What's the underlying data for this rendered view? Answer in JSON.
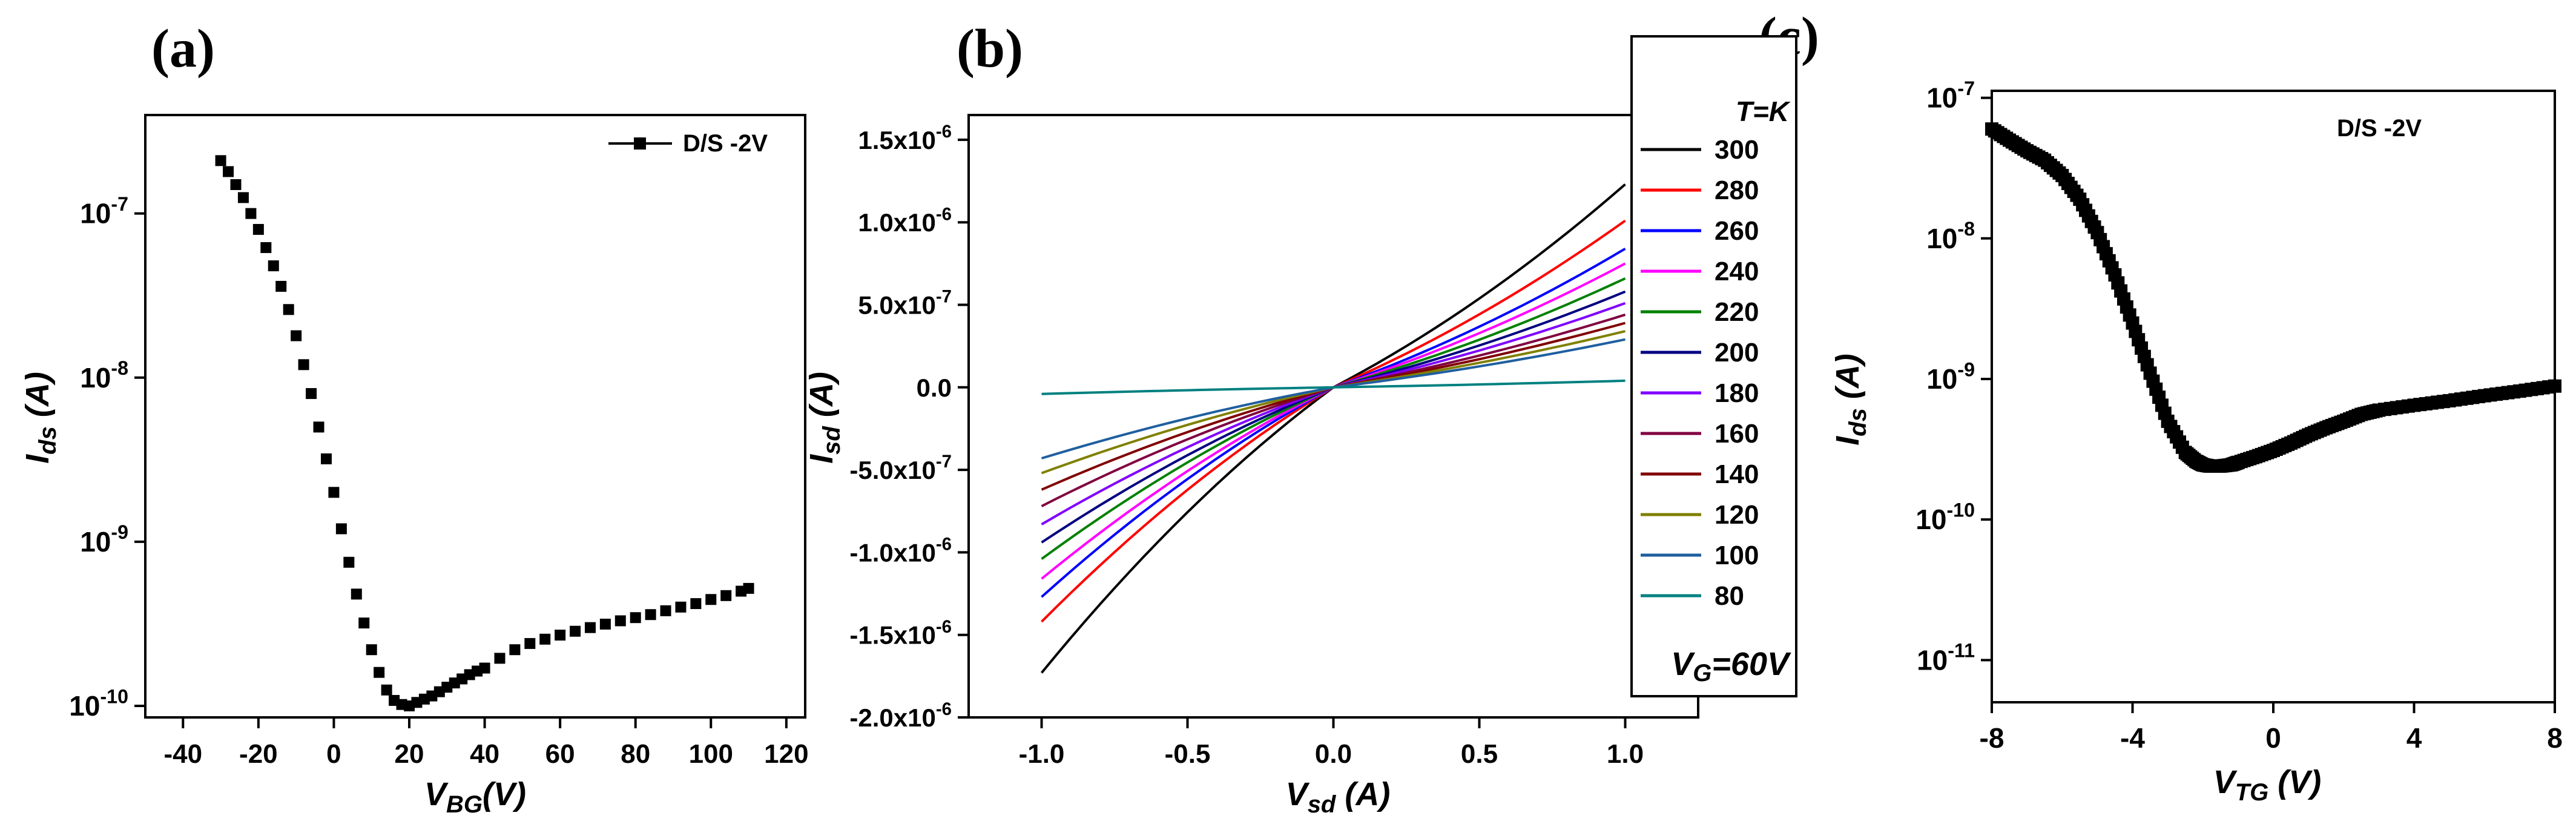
{
  "figure": {
    "panels": [
      {
        "id": "a",
        "letter": "(a)"
      },
      {
        "id": "b",
        "letter": "(b)"
      },
      {
        "id": "c",
        "letter": "(c)"
      }
    ]
  },
  "chart_data": [
    {
      "id": "a",
      "type": "scatter",
      "scale_y": "log",
      "ylabel": {
        "main": "I",
        "sub": "ds",
        "unit": " (A)"
      },
      "xlabel": {
        "main": "V",
        "sub": "BG",
        "unit": "(V)"
      },
      "xlim": [
        -50,
        125
      ],
      "ylim_exp": [
        -10.07,
        -6.4
      ],
      "xticks": [
        -40,
        -20,
        0,
        20,
        40,
        60,
        80,
        100,
        120
      ],
      "xtick_labels": [
        "-40",
        "-20",
        "0",
        "20",
        "40",
        "60",
        "80",
        "100",
        "120"
      ],
      "yticks_exp": [
        -10,
        -9,
        -8,
        -7
      ],
      "ytick_labels": [
        {
          "base": "10",
          "exp": "-10"
        },
        {
          "base": "10",
          "exp": "-9"
        },
        {
          "base": "10",
          "exp": "-8"
        },
        {
          "base": "10",
          "exp": "-7"
        }
      ],
      "legend": {
        "label": "D/S -2V",
        "position": "top-right"
      },
      "series": [
        {
          "name": "D/S -2V",
          "x": [
            -30,
            -28,
            -26,
            -24,
            -22,
            -20,
            -18,
            -16,
            -14,
            -12,
            -10,
            -8,
            -6,
            -4,
            -2,
            0,
            2,
            4,
            6,
            8,
            10,
            12,
            14,
            16,
            18,
            20,
            22,
            24,
            26,
            28,
            30,
            32,
            34,
            36,
            38,
            40,
            44,
            48,
            52,
            56,
            60,
            64,
            68,
            72,
            76,
            80,
            84,
            88,
            92,
            96,
            100,
            104,
            108,
            110
          ],
          "y": [
            2.1e-07,
            1.8e-07,
            1.5e-07,
            1.25e-07,
            1e-07,
            8e-08,
            6.2e-08,
            4.8e-08,
            3.6e-08,
            2.6e-08,
            1.8e-08,
            1.2e-08,
            8e-09,
            5e-09,
            3.2e-09,
            2e-09,
            1.2e-09,
            7.5e-10,
            4.8e-10,
            3.2e-10,
            2.2e-10,
            1.6e-10,
            1.25e-10,
            1.08e-10,
            1.02e-10,
            1e-10,
            1.05e-10,
            1.1e-10,
            1.15e-10,
            1.22e-10,
            1.3e-10,
            1.38e-10,
            1.46e-10,
            1.55e-10,
            1.63e-10,
            1.7e-10,
            1.95e-10,
            2.2e-10,
            2.4e-10,
            2.55e-10,
            2.7e-10,
            2.85e-10,
            3e-10,
            3.15e-10,
            3.3e-10,
            3.45e-10,
            3.6e-10,
            3.8e-10,
            4e-10,
            4.2e-10,
            4.45e-10,
            4.7e-10,
            5e-10,
            5.2e-10
          ]
        }
      ]
    },
    {
      "id": "b",
      "type": "line",
      "ylabel": {
        "main": "I",
        "sub": "sd",
        "unit": " (A)"
      },
      "xlabel": {
        "main": "V",
        "sub": "sd",
        "unit": " (A)"
      },
      "xlim": [
        -1.25,
        1.25
      ],
      "ylim": [
        -2e-06,
        1.65e-06
      ],
      "xticks": [
        -1.0,
        -0.5,
        0.0,
        0.5,
        1.0
      ],
      "xtick_labels": [
        "-1.0",
        "-0.5",
        "0.0",
        "0.5",
        "1.0"
      ],
      "yticks": [
        -2e-06,
        -1.5e-06,
        -1e-06,
        -5e-07,
        0,
        5e-07,
        1e-06,
        1.5e-06
      ],
      "ytick_labels": [
        {
          "base": "-2.0x10",
          "exp": "-6"
        },
        {
          "base": "-1.5x10",
          "exp": "-6"
        },
        {
          "base": "-1.0x10",
          "exp": "-6"
        },
        {
          "base": "-5.0x10",
          "exp": "-7"
        },
        {
          "base": "0.0",
          "exp": ""
        },
        {
          "base": "5.0x10",
          "exp": "-7"
        },
        {
          "base": "1.0x10",
          "exp": "-6"
        },
        {
          "base": "1.5x10",
          "exp": "-6"
        }
      ],
      "legend_title": "T=K",
      "legend_footer": {
        "main": "V",
        "sub": "G",
        "rest": "=60V"
      },
      "series": [
        {
          "name": "300",
          "color": "#000000",
          "pos": 1.23e-06,
          "neg": -1.73e-06
        },
        {
          "name": "280",
          "color": "#ff0000",
          "pos": 1.01e-06,
          "neg": -1.42e-06
        },
        {
          "name": "260",
          "color": "#0000ff",
          "pos": 8.4e-07,
          "neg": -1.27e-06
        },
        {
          "name": "240",
          "color": "#ff00ff",
          "pos": 7.5e-07,
          "neg": -1.16e-06
        },
        {
          "name": "220",
          "color": "#008000",
          "pos": 6.6e-07,
          "neg": -1.04e-06
        },
        {
          "name": "200",
          "color": "#000080",
          "pos": 5.8e-07,
          "neg": -9.4e-07
        },
        {
          "name": "180",
          "color": "#8000ff",
          "pos": 5.1e-07,
          "neg": -8.3e-07
        },
        {
          "name": "160",
          "color": "#800040",
          "pos": 4.4e-07,
          "neg": -7.2e-07
        },
        {
          "name": "140",
          "color": "#800000",
          "pos": 3.9e-07,
          "neg": -6.2e-07
        },
        {
          "name": "120",
          "color": "#808000",
          "pos": 3.4e-07,
          "neg": -5.2e-07
        },
        {
          "name": "100",
          "color": "#1f5f9f",
          "pos": 2.9e-07,
          "neg": -4.3e-07
        },
        {
          "name": "80",
          "color": "#008080",
          "pos": 4e-08,
          "neg": -4e-08
        }
      ]
    },
    {
      "id": "c",
      "type": "scatter",
      "scale_y": "log",
      "ylabel": {
        "main": "I",
        "sub": "ds",
        "unit": " (A)"
      },
      "xlabel": {
        "main": "V",
        "sub": "TG",
        "unit": " (V)"
      },
      "xlim": [
        -8,
        8
      ],
      "ylim_exp": [
        -11.3,
        -6.95
      ],
      "xticks": [
        -8,
        -4,
        0,
        4,
        8
      ],
      "xtick_labels": [
        "-8",
        "-4",
        "0",
        "4",
        "8"
      ],
      "yticks_exp": [
        -11,
        -10,
        -9,
        -8,
        -7
      ],
      "ytick_labels": [
        {
          "base": "10",
          "exp": "-11"
        },
        {
          "base": "10",
          "exp": "-10"
        },
        {
          "base": "10",
          "exp": "-9"
        },
        {
          "base": "10",
          "exp": "-8"
        },
        {
          "base": "10",
          "exp": "-7"
        }
      ],
      "annotation": "D/S -2V",
      "series": [
        {
          "name": "D/S -2V",
          "x": [
            -8,
            -7.5,
            -7,
            -6.5,
            -6,
            -5.5,
            -5,
            -4.5,
            -4,
            -3.5,
            -3,
            -2.5,
            -2.2,
            -2,
            -1.8,
            -1.5,
            -1.2,
            -1,
            -0.5,
            0,
            0.5,
            1,
            1.5,
            2,
            2.5,
            3,
            4,
            5,
            6,
            7,
            8
          ],
          "y": [
            6e-08,
            5e-08,
            4.2e-08,
            3.6e-08,
            2.8e-08,
            1.9e-08,
            1.1e-08,
            5.5e-09,
            2.5e-09,
            1.1e-09,
            5e-10,
            3e-10,
            2.6e-10,
            2.45e-10,
            2.4e-10,
            2.4e-10,
            2.45e-10,
            2.55e-10,
            2.8e-10,
            3.1e-10,
            3.5e-10,
            4e-10,
            4.5e-10,
            5e-10,
            5.6e-10,
            6e-10,
            6.5e-10,
            7e-10,
            7.6e-10,
            8.2e-10,
            8.9e-10
          ]
        }
      ]
    }
  ]
}
